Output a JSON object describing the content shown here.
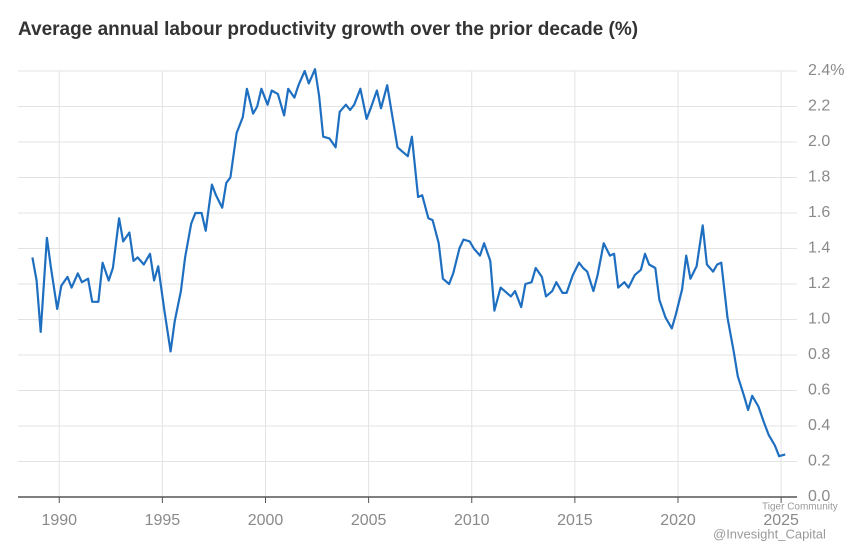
{
  "chart_data": {
    "type": "line",
    "title": "Average annual labour productivity growth over the prior decade (%)",
    "x": [
      1988.7,
      1988.9,
      1989.1,
      1989.4,
      1989.6,
      1989.9,
      1990.1,
      1990.4,
      1990.6,
      1990.9,
      1991.1,
      1991.4,
      1991.6,
      1991.9,
      1992.1,
      1992.4,
      1992.6,
      1992.9,
      1993.1,
      1993.4,
      1993.6,
      1993.8,
      1994.1,
      1994.4,
      1994.6,
      1994.8,
      1995.1,
      1995.4,
      1995.6,
      1995.9,
      1996.1,
      1996.4,
      1996.6,
      1996.9,
      1997.1,
      1997.4,
      1997.6,
      1997.9,
      1998.1,
      1998.3,
      1998.6,
      1998.9,
      1999.1,
      1999.4,
      1999.6,
      1999.8,
      2000.1,
      2000.3,
      2000.6,
      2000.9,
      2001.1,
      2001.4,
      2001.6,
      2001.9,
      2002.1,
      2002.4,
      2002.6,
      2002.8,
      2003.1,
      2003.4,
      2003.6,
      2003.9,
      2004.1,
      2004.3,
      2004.6,
      2004.9,
      2005.1,
      2005.4,
      2005.6,
      2005.9,
      2006.1,
      2006.4,
      2006.6,
      2006.9,
      2007.1,
      2007.4,
      2007.6,
      2007.9,
      2008.1,
      2008.4,
      2008.6,
      2008.9,
      2009.1,
      2009.4,
      2009.6,
      2009.9,
      2010.1,
      2010.4,
      2010.6,
      2010.9,
      2011.1,
      2011.4,
      2011.6,
      2011.9,
      2012.1,
      2012.4,
      2012.6,
      2012.9,
      2013.1,
      2013.4,
      2013.6,
      2013.9,
      2014.1,
      2014.4,
      2014.6,
      2014.9,
      2015.2,
      2015.4,
      2015.6,
      2015.9,
      2016.1,
      2016.4,
      2016.7,
      2016.9,
      2017.1,
      2017.4,
      2017.6,
      2017.9,
      2018.2,
      2018.4,
      2018.6,
      2018.9,
      2019.1,
      2019.4,
      2019.7,
      2019.9,
      2020.2,
      2020.4,
      2020.6,
      2020.9,
      2021.2,
      2021.4,
      2021.7,
      2021.9,
      2022.1,
      2022.4,
      2022.7,
      2022.9,
      2023.2,
      2023.4,
      2023.6,
      2023.9,
      2024.2,
      2024.4,
      2024.7,
      2024.9,
      2025.2
    ],
    "series": [
      {
        "color": "#1f6fc1",
        "values": [
          1.35,
          1.22,
          0.93,
          1.46,
          1.29,
          1.06,
          1.19,
          1.24,
          1.18,
          1.26,
          1.21,
          1.23,
          1.1,
          1.1,
          1.32,
          1.22,
          1.29,
          1.57,
          1.44,
          1.49,
          1.33,
          1.35,
          1.31,
          1.37,
          1.22,
          1.3,
          1.05,
          0.82,
          0.99,
          1.16,
          1.35,
          1.54,
          1.6,
          1.6,
          1.5,
          1.76,
          1.7,
          1.63,
          1.77,
          1.8,
          2.05,
          2.14,
          2.3,
          2.16,
          2.2,
          2.3,
          2.21,
          2.29,
          2.27,
          2.15,
          2.3,
          2.25,
          2.32,
          2.4,
          2.33,
          2.41,
          2.26,
          2.03,
          2.02,
          1.97,
          2.17,
          2.21,
          2.18,
          2.21,
          2.3,
          2.13,
          2.19,
          2.29,
          2.19,
          2.32,
          2.18,
          1.97,
          1.95,
          1.92,
          2.03,
          1.69,
          1.7,
          1.57,
          1.56,
          1.43,
          1.23,
          1.2,
          1.26,
          1.4,
          1.45,
          1.44,
          1.4,
          1.36,
          1.43,
          1.33,
          1.05,
          1.18,
          1.16,
          1.13,
          1.16,
          1.07,
          1.2,
          1.21,
          1.29,
          1.24,
          1.13,
          1.16,
          1.21,
          1.15,
          1.15,
          1.25,
          1.32,
          1.29,
          1.27,
          1.16,
          1.25,
          1.43,
          1.36,
          1.37,
          1.18,
          1.21,
          1.18,
          1.25,
          1.28,
          1.37,
          1.31,
          1.29,
          1.11,
          1.01,
          0.95,
          1.03,
          1.17,
          1.36,
          1.23,
          1.3,
          1.53,
          1.31,
          1.27,
          1.31,
          1.32,
          1.01,
          0.82,
          0.68,
          0.57,
          0.49,
          0.57,
          0.51,
          0.41,
          0.35,
          0.29,
          0.23,
          0.24
        ]
      }
    ],
    "xlim": [
      1988,
      2025.77
    ],
    "xticks": [
      1990,
      1995,
      2000,
      2005,
      2010,
      2015,
      2020,
      2025
    ],
    "ylim": [
      0,
      2.4
    ],
    "yticks": [
      {
        "value": 0,
        "label": "0.0"
      },
      0.2,
      0.4,
      0.6,
      0.8,
      {
        "value": 1,
        "label": "1.0"
      },
      1.2,
      1.4,
      1.6,
      1.8,
      {
        "value": 2,
        "label": "2.0"
      },
      2.2,
      {
        "value": 2.4,
        "label": "2.4%"
      }
    ],
    "grid": true
  },
  "watermark": [
    "Tiger Community",
    "@Invesight_Capital"
  ]
}
